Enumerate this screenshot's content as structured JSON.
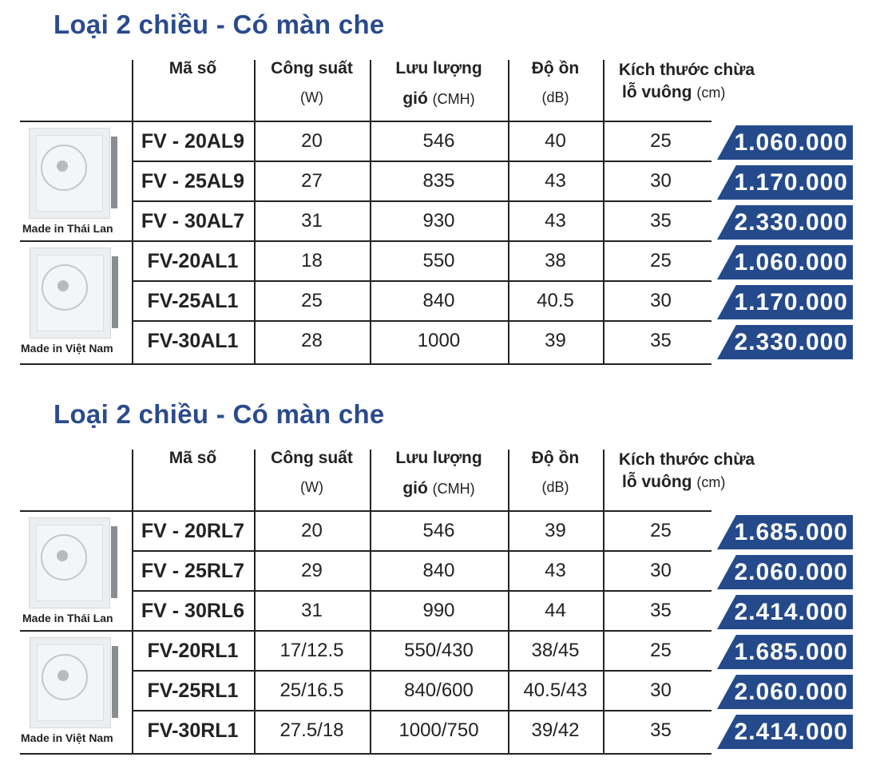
{
  "sections": [
    {
      "title": "Loại 2 chiều - Có màn che",
      "headers": {
        "code": "Mã số",
        "power": "Công suất",
        "power_unit": "(W)",
        "flow": "Lưu lượng",
        "flow_sub": "gió",
        "flow_unit": "(CMH)",
        "noise": "Độ ồn",
        "noise_unit": "(dB)",
        "size": "Kích thước chừa",
        "size_sub": "lỗ vuông",
        "size_unit": "(cm)"
      },
      "groups": [
        {
          "origin": "Made in Thái Lan",
          "image": "exhaust-fan-thailand"
        },
        {
          "origin": "Made in Việt Nam",
          "image": "exhaust-fan-vietnam"
        }
      ],
      "rows": [
        {
          "code": "FV - 20AL9",
          "power": "20",
          "flow": "546",
          "noise": "40",
          "size": "25",
          "price": "1.060.000"
        },
        {
          "code": "FV - 25AL9",
          "power": "27",
          "flow": "835",
          "noise": "43",
          "size": "30",
          "price": "1.170.000"
        },
        {
          "code": "FV - 30AL7",
          "power": "31",
          "flow": "930",
          "noise": "43",
          "size": "35",
          "price": "2.330.000"
        },
        {
          "code": "FV-20AL1",
          "power": "18",
          "flow": "550",
          "noise": "38",
          "size": "25",
          "price": "1.060.000"
        },
        {
          "code": "FV-25AL1",
          "power": "25",
          "flow": "840",
          "noise": "40.5",
          "size": "30",
          "price": "1.170.000"
        },
        {
          "code": "FV-30AL1",
          "power": "28",
          "flow": "1000",
          "noise": "39",
          "size": "35",
          "price": "2.330.000"
        }
      ]
    },
    {
      "title": "Loại 2 chiều - Có màn che",
      "headers": {
        "code": "Mã số",
        "power": "Công suất",
        "power_unit": "(W)",
        "flow": "Lưu lượng",
        "flow_sub": "gió",
        "flow_unit": "(CMH)",
        "noise": "Độ ồn",
        "noise_unit": "(dB)",
        "size": "Kích thước chừa",
        "size_sub": "lỗ vuông",
        "size_unit": "(cm)"
      },
      "groups": [
        {
          "origin": "Made in Thái Lan",
          "image": "exhaust-fan-thailand"
        },
        {
          "origin": "Made in Việt Nam",
          "image": "exhaust-fan-vietnam"
        }
      ],
      "rows": [
        {
          "code": "FV - 20RL7",
          "power": "20",
          "flow": "546",
          "noise": "39",
          "size": "25",
          "price": "1.685.000"
        },
        {
          "code": "FV - 25RL7",
          "power": "29",
          "flow": "840",
          "noise": "43",
          "size": "30",
          "price": "2.060.000"
        },
        {
          "code": "FV - 30RL6",
          "power": "31",
          "flow": "990",
          "noise": "44",
          "size": "35",
          "price": "2.414.000"
        },
        {
          "code": "FV-20RL1",
          "power": "17/12.5",
          "flow": "550/430",
          "noise": "38/45",
          "size": "25",
          "price": "1.685.000"
        },
        {
          "code": "FV-25RL1",
          "power": "25/16.5",
          "flow": "840/600",
          "noise": "40.5/43",
          "size": "30",
          "price": "2.060.000"
        },
        {
          "code": "FV-30RL1",
          "power": "27.5/18",
          "flow": "1000/750",
          "noise": "39/42",
          "size": "35",
          "price": "2.414.000"
        }
      ]
    }
  ],
  "colors": {
    "accent": "#244a8c",
    "title": "#2a4b8d"
  }
}
